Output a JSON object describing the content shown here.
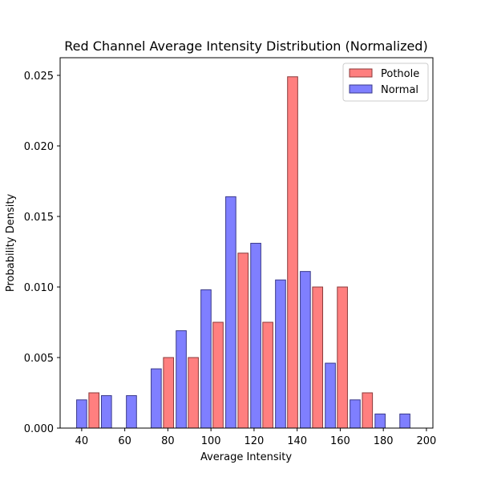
{
  "chart_data": {
    "type": "bar",
    "title": "Red Channel Average Intensity Distribution (Normalized)",
    "xlabel": "Average Intensity",
    "ylabel": "Probability Density",
    "xlim": [
      30,
      203
    ],
    "ylim": [
      0,
      0.02625
    ],
    "xticks": [
      40,
      60,
      80,
      100,
      120,
      140,
      160,
      180,
      200
    ],
    "yticks": [
      0.0,
      0.005,
      0.01,
      0.015,
      0.02,
      0.025
    ],
    "ytick_labels": [
      "0.000",
      "0.005",
      "0.010",
      "0.015",
      "0.020",
      "0.025"
    ],
    "grid": false,
    "legend_position": "top-right",
    "series": [
      {
        "name": "Pothole",
        "color": "#ff7f7f",
        "edge_color": "#8b3a3a",
        "x": [
          45.7,
          80.3,
          91.8,
          103.3,
          114.9,
          126.4,
          137.9,
          149.5,
          161.0,
          172.6
        ],
        "values": [
          0.0025,
          0.005,
          0.005,
          0.0075,
          0.0124,
          0.0075,
          0.0249,
          0.01,
          0.01,
          0.0025
        ]
      },
      {
        "name": "Normal",
        "color": "#7f7fff",
        "edge_color": "#3a3a8b",
        "x": [
          40.0,
          51.5,
          63.1,
          74.6,
          86.2,
          97.7,
          109.2,
          120.8,
          132.3,
          143.8,
          155.4,
          166.9,
          178.5,
          190.0
        ],
        "values": [
          0.002,
          0.0023,
          0.0023,
          0.0042,
          0.0069,
          0.0098,
          0.0164,
          0.0131,
          0.0105,
          0.0111,
          0.0046,
          0.002,
          0.001,
          0.001
        ]
      }
    ],
    "bar_width": 4.7
  }
}
